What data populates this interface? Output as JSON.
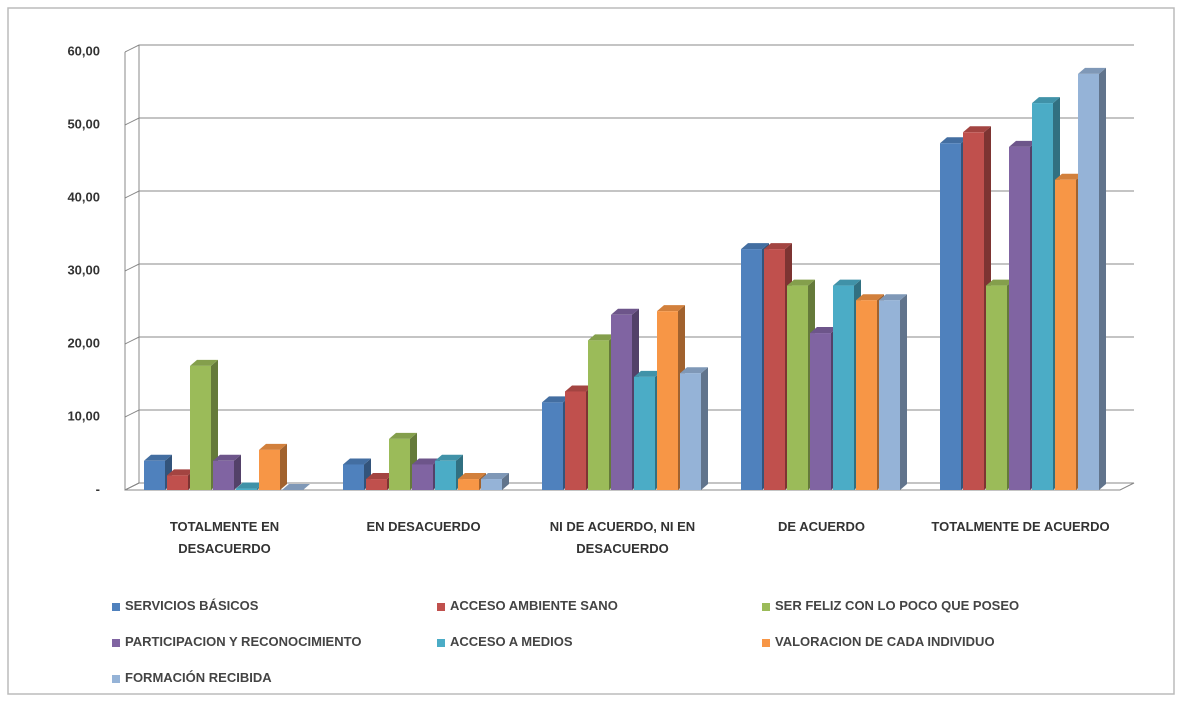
{
  "chart_data": {
    "type": "bar3d",
    "categories": [
      "TOTALMENTE EN DESACUERDO",
      "EN DESACUERDO",
      "NI DE ACUERDO, NI EN DESACUERDO",
      "DE ACUERDO",
      "TOTALMENTE DE ACUERDO"
    ],
    "series": [
      {
        "name": "SERVICIOS BÁSICOS",
        "color": "#4f81bd",
        "values": [
          4,
          3.5,
          12,
          33,
          47.5
        ]
      },
      {
        "name": "ACCESO AMBIENTE SANO",
        "color": "#c0504d",
        "values": [
          2,
          1.5,
          13.5,
          33,
          49
        ]
      },
      {
        "name": "SER FELIZ CON LO POCO QUE POSEO",
        "color": "#9bbb59",
        "values": [
          17,
          7,
          20.5,
          28,
          28
        ]
      },
      {
        "name": "PARTICIPACION Y RECONOCIMIENTO",
        "color": "#8064a2",
        "values": [
          4,
          3.5,
          24,
          21.5,
          47
        ]
      },
      {
        "name": "ACCESO A MEDIOS",
        "color": "#4bacc6",
        "values": [
          0.2,
          4,
          15.5,
          28,
          53
        ]
      },
      {
        "name": "VALORACION DE CADA INDIVIDUO",
        "color": "#f79646",
        "values": [
          5.5,
          1.5,
          24.5,
          26,
          42.5
        ]
      },
      {
        "name": "FORMACIÓN RECIBIDA",
        "color": "#95b3d7",
        "values": [
          0,
          1.5,
          16,
          26,
          57
        ]
      }
    ],
    "ylim": [
      0,
      60
    ],
    "yticks": [
      {
        "value": 0,
        "label": "-"
      },
      {
        "value": 10,
        "label": "10,00"
      },
      {
        "value": 20,
        "label": "20,00"
      },
      {
        "value": 30,
        "label": "30,00"
      },
      {
        "value": 40,
        "label": "40,00"
      },
      {
        "value": 50,
        "label": "50,00"
      },
      {
        "value": 60,
        "label": "60,00"
      }
    ],
    "grid": true
  }
}
